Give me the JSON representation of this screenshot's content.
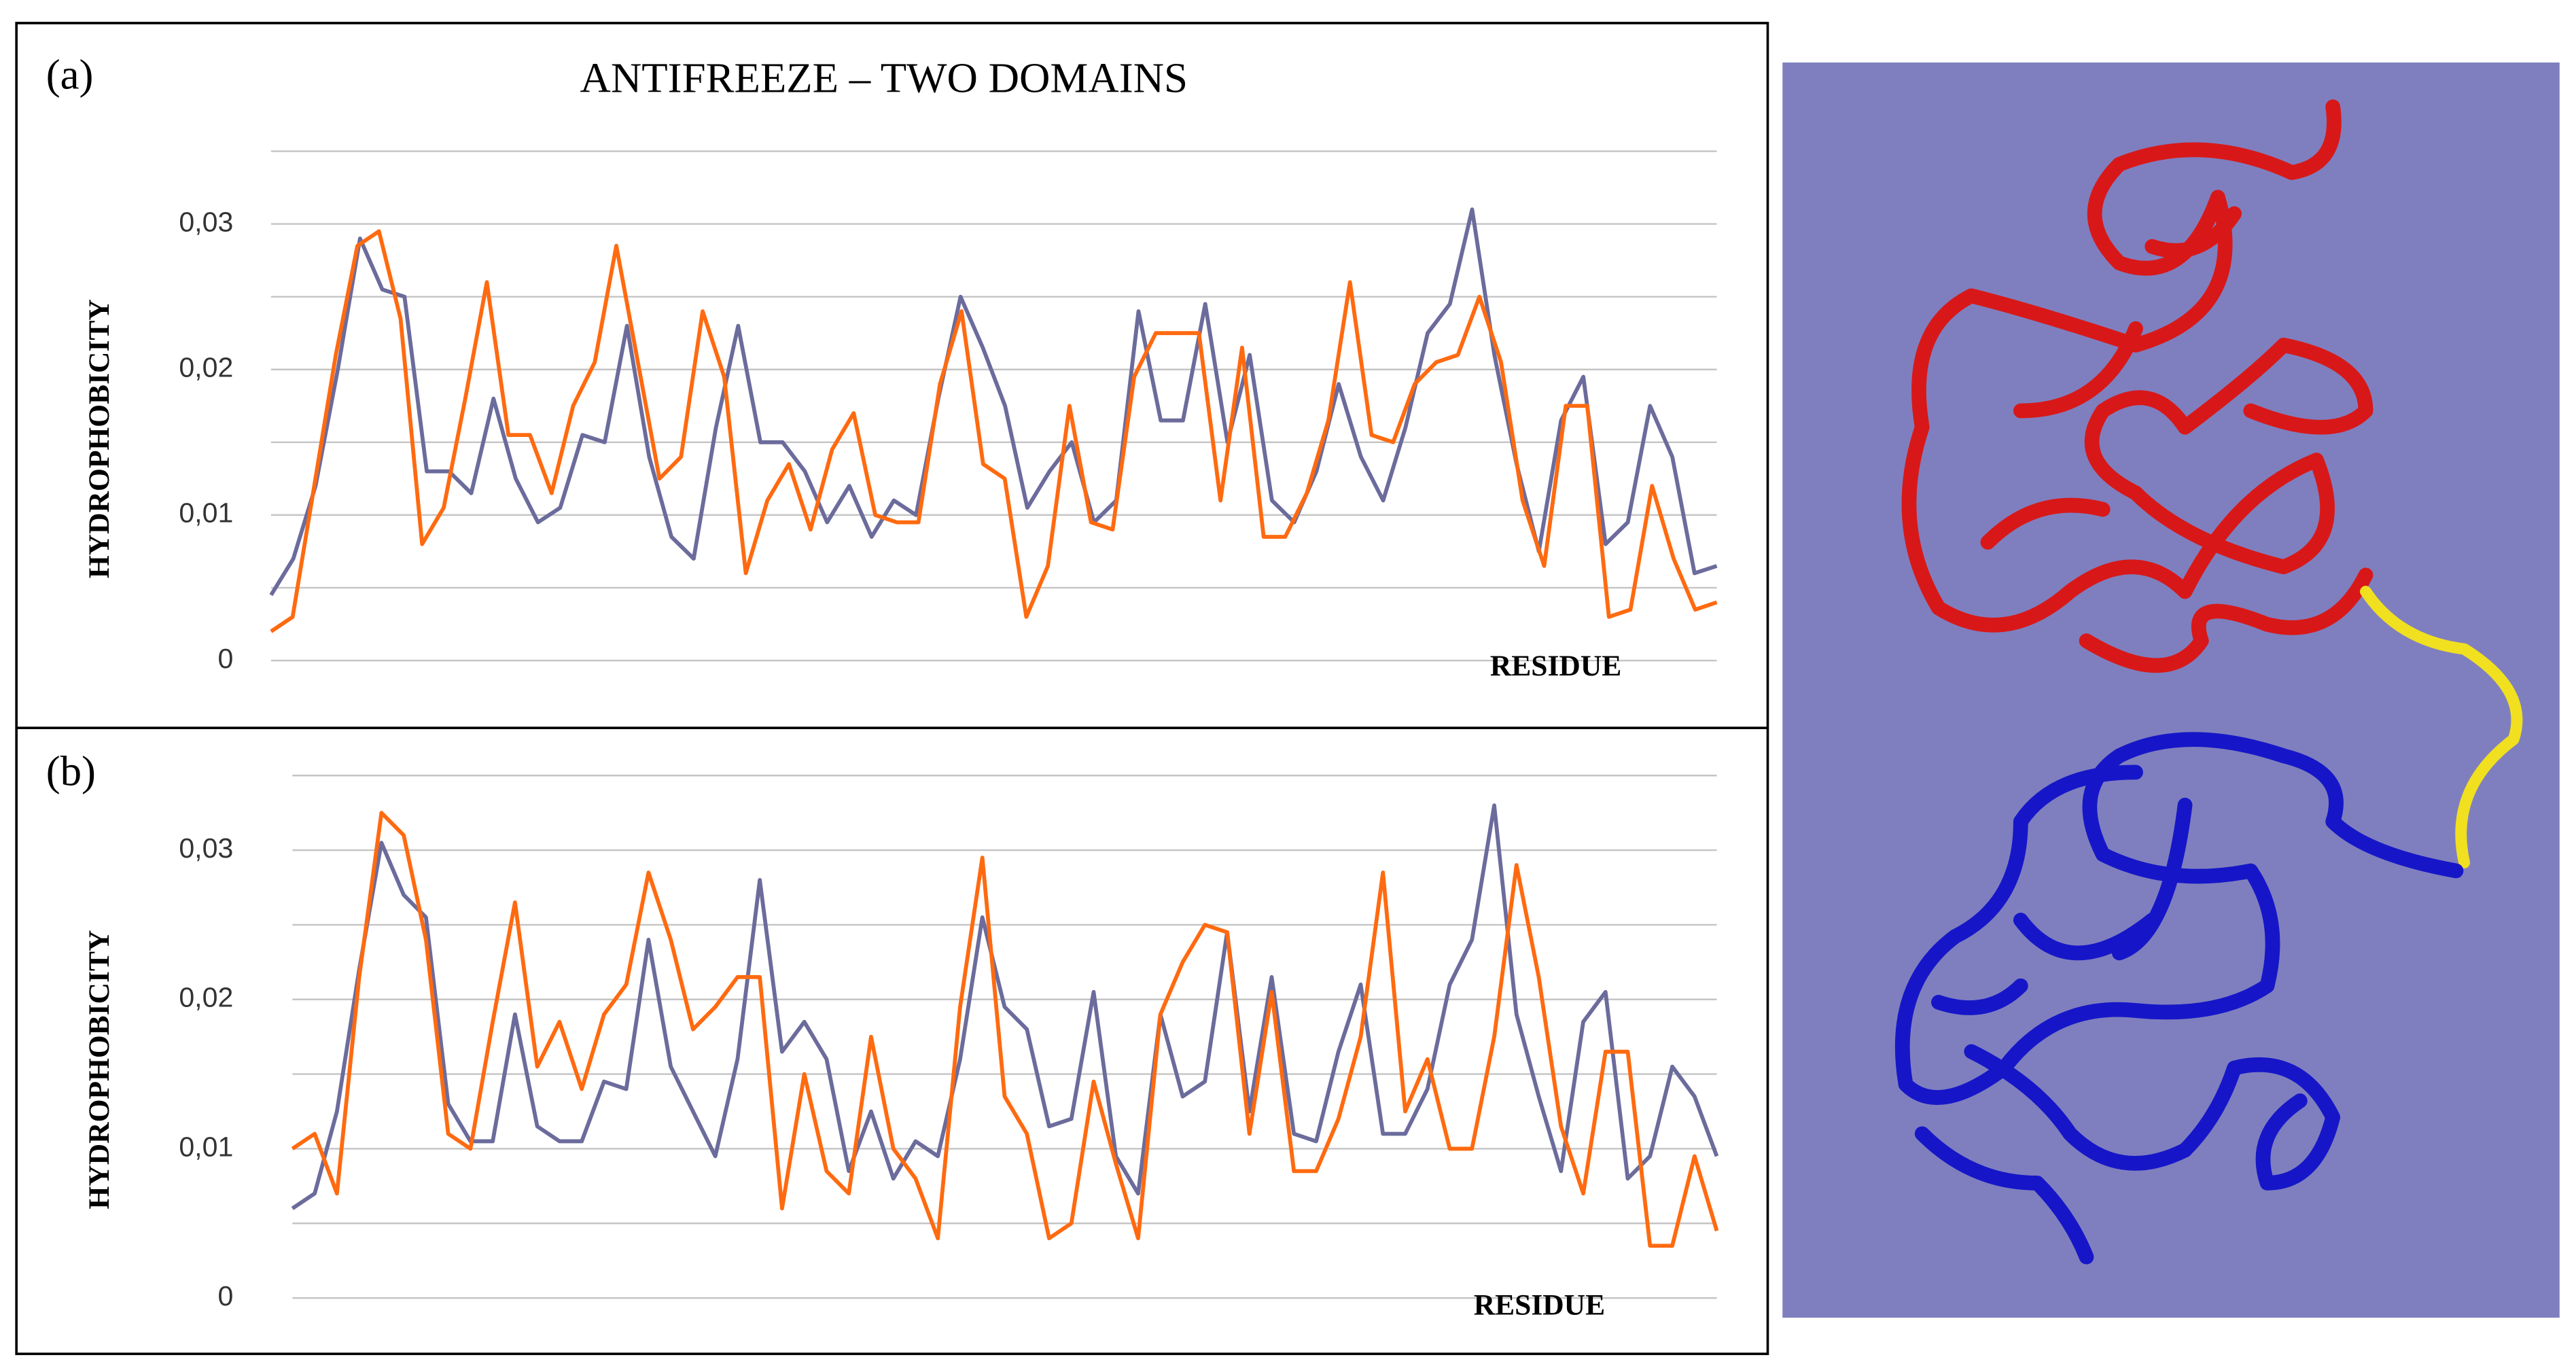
{
  "chart_data": [
    {
      "type": "line",
      "panel_label": "(a)",
      "title": "ANTIFREEZE – TWO  DOMAINS",
      "y_label": "HYDROPHOBICITY",
      "x_label": "RESIDUE",
      "ylim": [
        0,
        0.035
      ],
      "yticks": [
        0,
        {
          "value": 0.01,
          "label": "0,01"
        },
        {
          "value": 0.02,
          "label": "0,02"
        },
        {
          "value": 0.03,
          "label": "0,03"
        }
      ],
      "ygrid": [
        0.005,
        0.015,
        0.025,
        0.035
      ],
      "grid": true,
      "series": [
        {
          "color": "#6b6b9c",
          "values": [
            0.0045,
            0.007,
            0.012,
            0.02,
            0.029,
            0.0255,
            0.025,
            0.013,
            0.013,
            0.0115,
            0.018,
            0.0125,
            0.0095,
            0.0105,
            0.0155,
            0.015,
            0.023,
            0.014,
            0.0085,
            0.007,
            0.016,
            0.023,
            0.015,
            0.015,
            0.013,
            0.0095,
            0.012,
            0.0085,
            0.011,
            0.01,
            0.018,
            0.025,
            0.0215,
            0.0175,
            0.0105,
            0.013,
            0.015,
            0.0095,
            0.011,
            0.024,
            0.0165,
            0.0165,
            0.0245,
            0.015,
            0.021,
            0.011,
            0.0095,
            0.013,
            0.019,
            0.014,
            0.011,
            0.016,
            0.0225,
            0.0245,
            0.031,
            0.021,
            0.0135,
            0.0075,
            0.0165,
            0.0195,
            0.008,
            0.0095,
            0.0175,
            0.014,
            0.006,
            0.0065
          ]
        },
        {
          "color": "#ff6a10",
          "values": [
            0.002,
            0.003,
            0.012,
            0.021,
            0.0285,
            0.0295,
            0.0235,
            0.008,
            0.0105,
            0.018,
            0.026,
            0.0155,
            0.0155,
            0.0115,
            0.0175,
            0.0205,
            0.0285,
            0.0205,
            0.0125,
            0.014,
            0.024,
            0.0195,
            0.006,
            0.011,
            0.0135,
            0.009,
            0.0145,
            0.017,
            0.01,
            0.0095,
            0.0095,
            0.019,
            0.024,
            0.0135,
            0.0125,
            0.003,
            0.0065,
            0.0175,
            0.0095,
            0.009,
            0.0195,
            0.0225,
            0.0225,
            0.0225,
            0.011,
            0.0215,
            0.0085,
            0.0085,
            0.0115,
            0.0165,
            0.026,
            0.0155,
            0.015,
            0.019,
            0.0205,
            0.021,
            0.025,
            0.0205,
            0.011,
            0.0065,
            0.0175,
            0.0175,
            0.003,
            0.0035,
            0.012,
            0.007,
            0.0035,
            0.004
          ]
        }
      ]
    },
    {
      "type": "line",
      "panel_label": "(b)",
      "y_label": "HYDROPHOBICITY",
      "x_label": "RESIDUE",
      "ylim": [
        0,
        0.035
      ],
      "yticks": [
        0,
        {
          "value": 0.01,
          "label": "0,01"
        },
        {
          "value": 0.02,
          "label": "0,02"
        },
        {
          "value": 0.03,
          "label": "0,03"
        }
      ],
      "ygrid": [
        0.005,
        0.015,
        0.025,
        0.035
      ],
      "grid": true,
      "series": [
        {
          "color": "#6b6b9c",
          "values": [
            0.006,
            0.007,
            0.0125,
            0.022,
            0.0305,
            0.027,
            0.0255,
            0.013,
            0.0105,
            0.0105,
            0.019,
            0.0115,
            0.0105,
            0.0105,
            0.0145,
            0.014,
            0.024,
            0.0155,
            0.0125,
            0.0095,
            0.016,
            0.028,
            0.0165,
            0.0185,
            0.016,
            0.0085,
            0.0125,
            0.008,
            0.0105,
            0.0095,
            0.016,
            0.0255,
            0.0195,
            0.018,
            0.0115,
            0.012,
            0.0205,
            0.0095,
            0.007,
            0.019,
            0.0135,
            0.0145,
            0.0245,
            0.0125,
            0.0215,
            0.011,
            0.0105,
            0.0165,
            0.021,
            0.011,
            0.011,
            0.014,
            0.021,
            0.024,
            0.033,
            0.019,
            0.0135,
            0.0085,
            0.0185,
            0.0205,
            0.008,
            0.0095,
            0.0155,
            0.0135,
            0.0095
          ]
        },
        {
          "color": "#ff6a10",
          "values": [
            0.01,
            0.011,
            0.007,
            0.0215,
            0.0325,
            0.031,
            0.024,
            0.011,
            0.01,
            0.0185,
            0.0265,
            0.0155,
            0.0185,
            0.014,
            0.019,
            0.021,
            0.0285,
            0.024,
            0.018,
            0.0195,
            0.0215,
            0.0215,
            0.006,
            0.015,
            0.0085,
            0.007,
            0.0175,
            0.01,
            0.008,
            0.004,
            0.0195,
            0.0295,
            0.0135,
            0.011,
            0.004,
            0.005,
            0.0145,
            0.009,
            0.004,
            0.019,
            0.0225,
            0.025,
            0.0245,
            0.011,
            0.0205,
            0.0085,
            0.0085,
            0.012,
            0.0175,
            0.0285,
            0.0125,
            0.016,
            0.01,
            0.01,
            0.0175,
            0.029,
            0.0215,
            0.0115,
            0.007,
            0.0165,
            0.0165,
            0.0035,
            0.0035,
            0.0095,
            0.0045
          ]
        }
      ]
    }
  ]
}
